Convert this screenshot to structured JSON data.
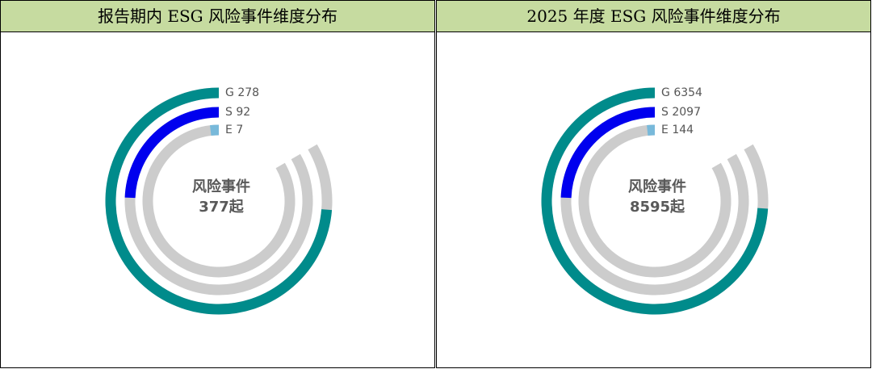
{
  "chart_data": [
    {
      "type": "radial-bar",
      "title": "报告期内 ESG 风险事件维度分布",
      "center_title": "风险事件",
      "total": 377,
      "total_label": "377起",
      "categories": [
        "G",
        "S",
        "E"
      ],
      "values": [
        278,
        92,
        7
      ],
      "colors": [
        "#008b8b",
        "#0000ee",
        "#78b9da"
      ]
    },
    {
      "type": "radial-bar",
      "title": "2025 年度 ESG 风险事件维度分布",
      "center_title": "风险事件",
      "total": 8595,
      "total_label": "8595起",
      "categories": [
        "G",
        "S",
        "E"
      ],
      "values": [
        6354,
        2097,
        144
      ],
      "colors": [
        "#008b8b",
        "#0000ee",
        "#78b9da"
      ]
    }
  ]
}
